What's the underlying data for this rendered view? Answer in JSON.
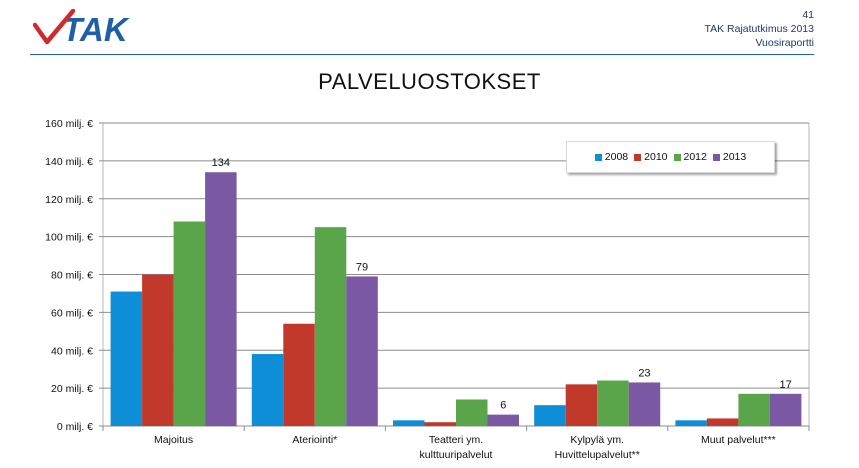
{
  "header": {
    "logo_text": "TAK",
    "page_number": "41",
    "report_title": "TAK Rajatutkimus 2013",
    "report_subtitle": "Vuosiraportti"
  },
  "colors": {
    "header_text": "#1f3a6e",
    "rule": "#1f5fa8",
    "series_2008": "#0e8ed7",
    "series_2010": "#c0392b",
    "series_2012": "#5aa54a",
    "series_2013": "#7b58a3"
  },
  "chart_data": {
    "type": "bar",
    "title": "PALVELUOSTOKSET",
    "xlabel": "",
    "ylabel": "",
    "ylim": [
      0,
      160
    ],
    "yticks": [
      0,
      20,
      40,
      60,
      80,
      100,
      120,
      140,
      160
    ],
    "ytick_suffix": " milj. €",
    "grid": true,
    "legend_position": "top-right",
    "categories": [
      [
        "Majoitus"
      ],
      [
        "Ateriointi*"
      ],
      [
        "Teatteri ym.",
        "kulttuuripalvelut"
      ],
      [
        "Kylpylä ym.",
        "Huvittelupalvelut**"
      ],
      [
        "Muut palvelut***"
      ]
    ],
    "series": [
      {
        "name": "2008",
        "color": "#0e8ed7",
        "values": [
          71,
          38,
          3,
          11,
          3
        ]
      },
      {
        "name": "2010",
        "color": "#c0392b",
        "values": [
          80,
          54,
          2,
          22,
          4
        ]
      },
      {
        "name": "2012",
        "color": "#5aa54a",
        "values": [
          108,
          105,
          14,
          24,
          17
        ]
      },
      {
        "name": "2013",
        "color": "#7b58a3",
        "values": [
          134,
          79,
          6,
          23,
          17
        ]
      }
    ],
    "data_labels": [
      {
        "series": "2013",
        "category_index": 0,
        "text": "134"
      },
      {
        "series": "2013",
        "category_index": 1,
        "text": "79"
      },
      {
        "series": "2013",
        "category_index": 2,
        "text": "6"
      },
      {
        "series": "2013",
        "category_index": 3,
        "text": "23"
      },
      {
        "series": "2013",
        "category_index": 4,
        "text": "17"
      }
    ]
  }
}
